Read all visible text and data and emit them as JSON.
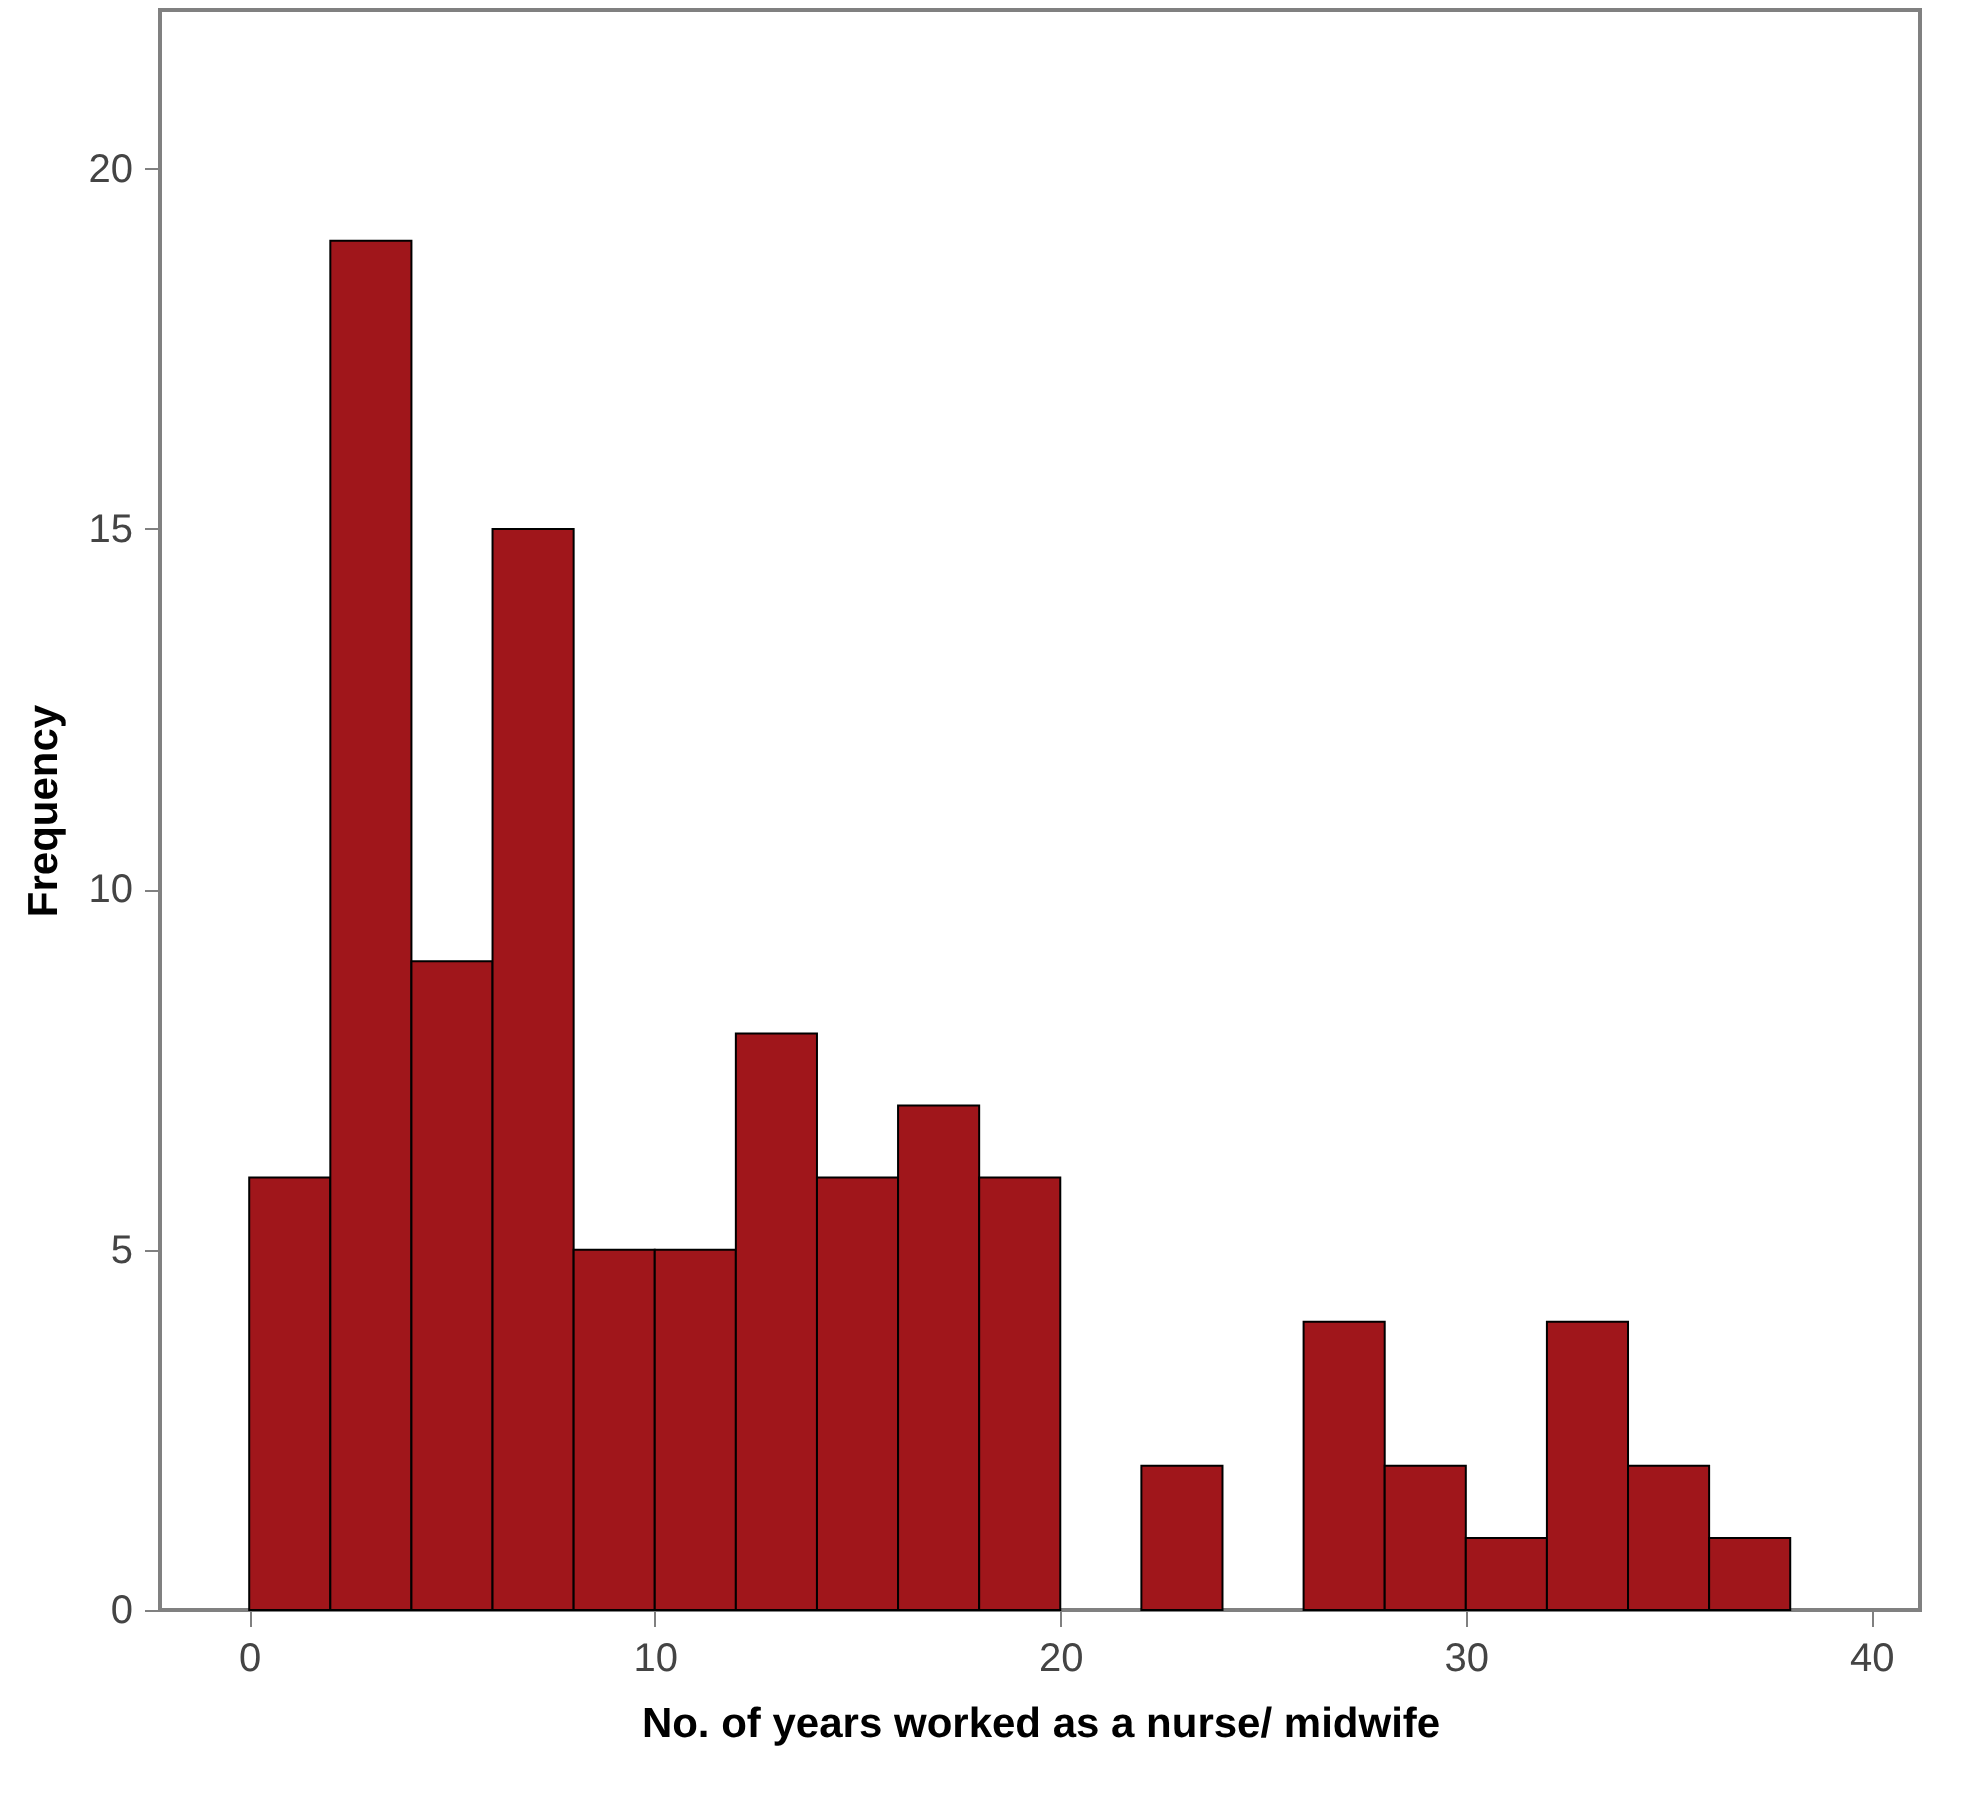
{
  "chart_data": {
    "type": "histogram",
    "xlabel": "No. of years worked as a nurse/ midwife",
    "ylabel": "Frequency",
    "bins": [
      0,
      2,
      4,
      6,
      8,
      10,
      12,
      14,
      16,
      18,
      20,
      22,
      24,
      26,
      28,
      30,
      32,
      34,
      36,
      38
    ],
    "values": [
      6,
      19,
      9,
      15,
      5,
      5,
      8,
      6,
      7,
      6,
      0,
      2,
      0,
      4,
      2,
      1,
      4,
      2,
      1
    ],
    "color": "#a0161b",
    "xlim": [
      -2.2,
      41.2
    ],
    "xticks": [
      0,
      10,
      20,
      30,
      40
    ],
    "ylim": [
      0,
      22.2
    ],
    "yticks": [
      0,
      5,
      10,
      15,
      20
    ],
    "grid": false
  }
}
